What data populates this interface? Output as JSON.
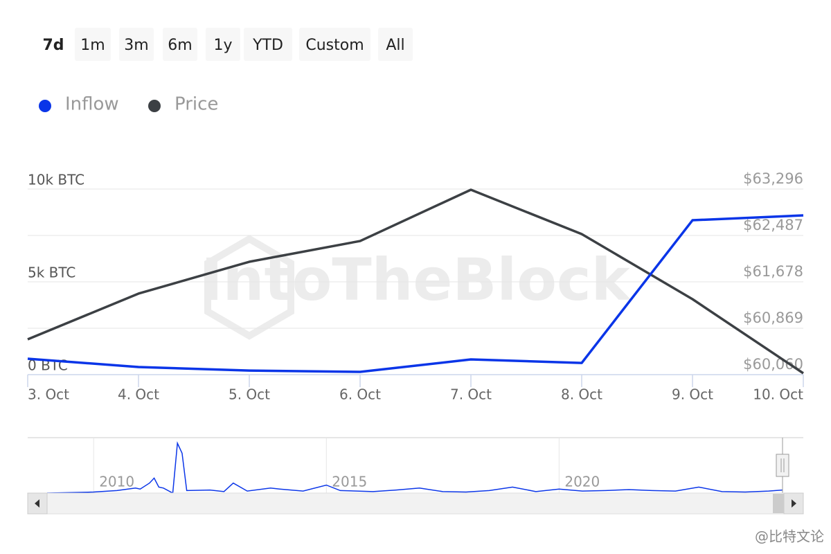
{
  "range_selector": {
    "buttons": [
      "7d",
      "1m",
      "3m",
      "6m",
      "1y",
      "YTD",
      "Custom",
      "All"
    ],
    "selected": "7d"
  },
  "chart_data": {
    "type": "line",
    "categories": [
      "3. Oct",
      "4. Oct",
      "5. Oct",
      "6. Oct",
      "7. Oct",
      "8. Oct",
      "9. Oct",
      "10. Oct"
    ],
    "series": [
      {
        "name": "Inflow",
        "color": "#0a35e8",
        "values": [
          860,
          410,
          220,
          150,
          820,
          630,
          8320,
          8580
        ]
      },
      {
        "name": "Price",
        "color": "#3c4044",
        "axis": "y2",
        "values": [
          60676,
          61473,
          62028,
          62390,
          63284,
          62511,
          61376,
          60084
        ]
      }
    ],
    "ylim": [
      0,
      10000
    ],
    "yticks": [
      {
        "value": 0,
        "label": "0 BTC"
      },
      {
        "value": 5000,
        "label": "5k BTC"
      },
      {
        "value": 10000,
        "label": "10k BTC"
      }
    ],
    "y2lim": [
      60060,
      63296
    ],
    "y2ticks": [
      {
        "value": 60060,
        "label": "$60,060"
      },
      {
        "value": 60869,
        "label": "$60,869"
      },
      {
        "value": 61678,
        "label": "$61,678"
      },
      {
        "value": 62487,
        "label": "$62,487"
      },
      {
        "value": 63296,
        "label": "$63,296"
      }
    ],
    "grid": true,
    "watermark": "IntoTheBlock",
    "navigator": {
      "color": "#0a35e8",
      "xlim": [
        2009,
        2024.8
      ],
      "ylim": [
        0,
        100
      ],
      "xticks": [
        2010,
        2015,
        2020
      ],
      "x": [
        2009,
        2010,
        2010.5,
        2010.9,
        2011,
        2011.2,
        2011.3,
        2011.4,
        2011.5,
        2011.7,
        2011.8,
        2011.9,
        2012,
        2012.5,
        2012.8,
        2013,
        2013.3,
        2013.8,
        2014,
        2014.5,
        2015,
        2015.3,
        2016,
        2016.5,
        2017,
        2017.5,
        2018,
        2018.5,
        2019,
        2019.5,
        2020,
        2020.5,
        2021,
        2021.5,
        2022,
        2022.5,
        2023,
        2023.5,
        2024,
        2024.5,
        2024.8
      ],
      "values": [
        0,
        2,
        5,
        10,
        8,
        20,
        30,
        12,
        10,
        0,
        100,
        80,
        5,
        6,
        3,
        20,
        4,
        10,
        8,
        4,
        16,
        5,
        3,
        6,
        10,
        3,
        2,
        5,
        12,
        3,
        8,
        4,
        5,
        7,
        5,
        4,
        12,
        3,
        2,
        4,
        6
      ]
    }
  },
  "credit": "@比特文论"
}
